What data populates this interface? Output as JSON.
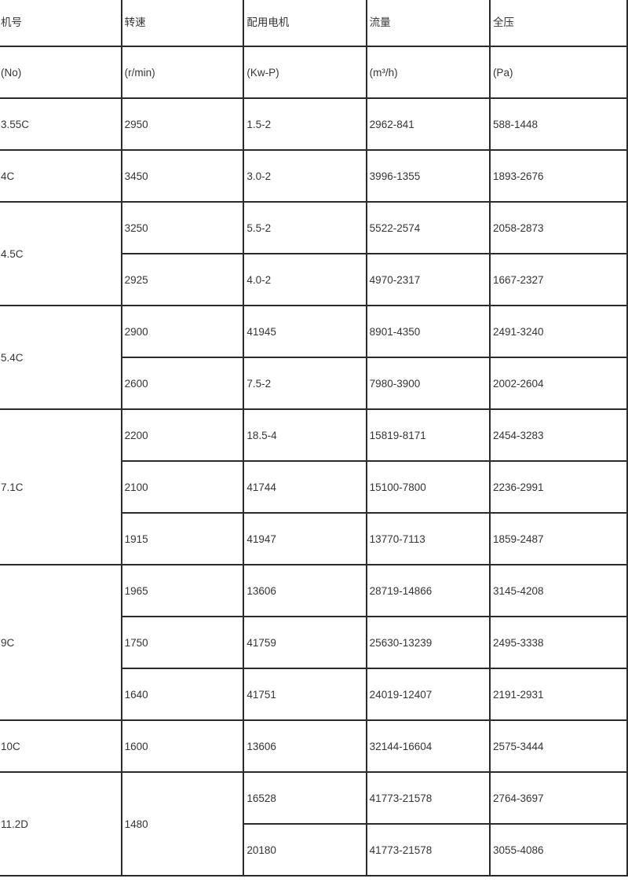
{
  "colors": {
    "border": "#2b2b2b",
    "text": "#343434",
    "background": "#ffffff"
  },
  "table": {
    "headers": [
      {
        "title": "机号",
        "unit": "(No)"
      },
      {
        "title": "转速",
        "unit": "(r/min)"
      },
      {
        "title": "配用电机",
        "unit": "(Kw-P)"
      },
      {
        "title": "流量",
        "unit": "(m³/h)"
      },
      {
        "title": "全压",
        "unit": "(Pa)"
      }
    ],
    "groups": [
      {
        "model": "3.55C",
        "rows": [
          [
            "2950",
            "1.5-2",
            "2962-841",
            "588-1448"
          ]
        ]
      },
      {
        "model": "4C",
        "rows": [
          [
            "3450",
            "3.0-2",
            "3996-1355",
            "1893-2676"
          ]
        ]
      },
      {
        "model": "4.5C",
        "rows": [
          [
            "3250",
            "5.5-2",
            "5522-2574",
            "2058-2873"
          ],
          [
            "2925",
            "4.0-2",
            "4970-2317",
            "1667-2327"
          ]
        ]
      },
      {
        "model": "5.4C",
        "rows": [
          [
            "2900",
            "41945",
            "8901-4350",
            "2491-3240"
          ],
          [
            "2600",
            "7.5-2",
            "7980-3900",
            "2002-2604"
          ]
        ]
      },
      {
        "model": "7.1C",
        "rows": [
          [
            "2200",
            "18.5-4",
            "15819-8171",
            "2454-3283"
          ],
          [
            "2100",
            "41744",
            "15100-7800",
            "2236-2991"
          ],
          [
            "1915",
            "41947",
            "13770-7113",
            "1859-2487"
          ]
        ]
      },
      {
        "model": "9C",
        "rows": [
          [
            "1965",
            "13606",
            "28719-14866",
            "3145-4208"
          ],
          [
            "1750",
            "41759",
            "25630-13239",
            "2495-3338"
          ],
          [
            "1640",
            "41751",
            "24019-12407",
            "2191-2931"
          ]
        ]
      },
      {
        "model": "10C",
        "rows": [
          [
            "1600",
            "13606",
            "32144-16604",
            "2575-3444"
          ]
        ]
      },
      {
        "model": "11.2D",
        "merged_speed": "1480",
        "rows": [
          [
            "16528",
            "41773-21578",
            "2764-3697"
          ],
          [
            "20180",
            "41773-21578",
            "3055-4086"
          ]
        ]
      }
    ]
  }
}
